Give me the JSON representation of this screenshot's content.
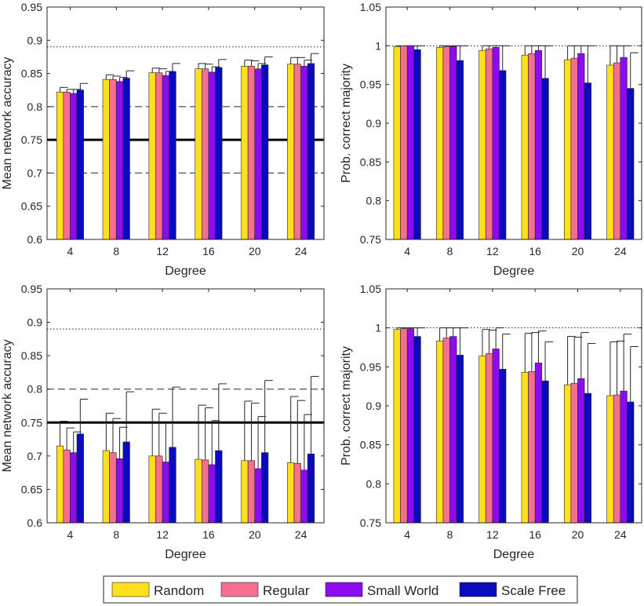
{
  "legend": [
    {
      "name": "Random",
      "color": "#FFE01A"
    },
    {
      "name": "Regular",
      "color": "#F76E8E"
    },
    {
      "name": "Small World",
      "color": "#8C0CF2"
    },
    {
      "name": "Scale Free",
      "color": "#0A0ABE"
    }
  ],
  "chart_data": [
    {
      "type": "bar",
      "panel": "top-left",
      "xlabel": "Degree",
      "ylabel": "Mean network accuracy",
      "categories": [
        "4",
        "8",
        "12",
        "16",
        "20",
        "24"
      ],
      "ylim": [
        0.6,
        0.95
      ],
      "yticks": [
        0.6,
        0.65,
        0.7,
        0.75,
        0.8,
        0.85,
        0.9,
        0.95
      ],
      "ytick_labels": [
        "0.6",
        "0.65",
        "0.7",
        "0.75",
        "0.8",
        "0.85",
        "0.9",
        "0.95"
      ],
      "reference_lines": [
        {
          "value": 0.75,
          "style": "solid-thick"
        },
        {
          "value": 0.7,
          "style": "dashed"
        },
        {
          "value": 0.8,
          "style": "dashed"
        },
        {
          "value": 0.89,
          "style": "dotted"
        }
      ],
      "series": [
        {
          "name": "Random",
          "values": [
            0.822,
            0.841,
            0.851,
            0.857,
            0.861,
            0.864
          ],
          "errors": [
            0.007,
            0.007,
            0.007,
            0.008,
            0.009,
            0.01
          ]
        },
        {
          "name": "Regular",
          "values": [
            0.822,
            0.841,
            0.851,
            0.857,
            0.861,
            0.864
          ],
          "errors": [
            0.004,
            0.005,
            0.006,
            0.007,
            0.008,
            0.01
          ]
        },
        {
          "name": "Small World",
          "values": [
            0.82,
            0.838,
            0.847,
            0.852,
            0.857,
            0.861
          ],
          "errors": [
            0.006,
            0.006,
            0.006,
            0.008,
            0.008,
            0.009
          ]
        },
        {
          "name": "Scale Free",
          "values": [
            0.825,
            0.843,
            0.853,
            0.859,
            0.863,
            0.865
          ],
          "errors": [
            0.01,
            0.011,
            0.012,
            0.012,
            0.012,
            0.015
          ]
        }
      ]
    },
    {
      "type": "bar",
      "panel": "top-right",
      "xlabel": "Degree",
      "ylabel": "Prob. correct majority",
      "categories": [
        "4",
        "8",
        "12",
        "16",
        "20",
        "24"
      ],
      "ylim": [
        0.75,
        1.05
      ],
      "yticks": [
        0.75,
        0.8,
        0.85,
        0.9,
        0.95,
        1.0,
        1.05
      ],
      "ytick_labels": [
        "0.75",
        "0.8",
        "0.85",
        "0.9",
        "0.95",
        "1",
        "1.05"
      ],
      "reference_lines": [
        {
          "value": 1.0,
          "style": "dotted"
        }
      ],
      "series": [
        {
          "name": "Random",
          "values": [
            0.999,
            0.998,
            0.994,
            0.988,
            0.982,
            0.975
          ],
          "errors": [
            0.001,
            0.002,
            0.006,
            0.012,
            0.018,
            0.025
          ]
        },
        {
          "name": "Regular",
          "values": [
            1.0,
            0.999,
            0.996,
            0.99,
            0.984,
            0.978
          ],
          "errors": [
            0.0,
            0.001,
            0.004,
            0.01,
            0.016,
            0.022
          ]
        },
        {
          "name": "Small World",
          "values": [
            1.0,
            0.999,
            0.998,
            0.994,
            0.99,
            0.985
          ],
          "errors": [
            0.0,
            0.001,
            0.002,
            0.006,
            0.01,
            0.015
          ]
        },
        {
          "name": "Scale Free",
          "values": [
            0.995,
            0.981,
            0.968,
            0.958,
            0.952,
            0.945
          ],
          "errors": [
            0.005,
            0.019,
            0.032,
            0.042,
            0.048,
            0.046
          ]
        }
      ]
    },
    {
      "type": "bar",
      "panel": "bottom-left",
      "xlabel": "Degree",
      "ylabel": "Mean network accuracy",
      "categories": [
        "4",
        "8",
        "12",
        "16",
        "20",
        "24"
      ],
      "ylim": [
        0.6,
        0.95
      ],
      "yticks": [
        0.6,
        0.65,
        0.7,
        0.75,
        0.8,
        0.85,
        0.9,
        0.95
      ],
      "ytick_labels": [
        "0.6",
        "0.65",
        "0.7",
        "0.75",
        "0.8",
        "0.85",
        "0.9",
        "0.95"
      ],
      "reference_lines": [
        {
          "value": 0.75,
          "style": "solid-thick"
        },
        {
          "value": 0.8,
          "style": "dashed"
        },
        {
          "value": 0.89,
          "style": "dotted"
        }
      ],
      "series": [
        {
          "name": "Random",
          "values": [
            0.715,
            0.708,
            0.7,
            0.695,
            0.693,
            0.69
          ],
          "errors": [
            0.037,
            0.056,
            0.07,
            0.081,
            0.089,
            0.099
          ]
        },
        {
          "name": "Regular",
          "values": [
            0.709,
            0.705,
            0.7,
            0.694,
            0.693,
            0.689
          ],
          "errors": [
            0.033,
            0.051,
            0.064,
            0.078,
            0.086,
            0.094
          ]
        },
        {
          "name": "Small World",
          "values": [
            0.705,
            0.696,
            0.691,
            0.687,
            0.681,
            0.679
          ],
          "errors": [
            0.031,
            0.047,
            0.058,
            0.066,
            0.078,
            0.083
          ]
        },
        {
          "name": "Scale Free",
          "values": [
            0.733,
            0.721,
            0.713,
            0.708,
            0.705,
            0.703
          ],
          "errors": [
            0.052,
            0.075,
            0.09,
            0.1,
            0.108,
            0.116
          ]
        }
      ]
    },
    {
      "type": "bar",
      "panel": "bottom-right",
      "xlabel": "Degree",
      "ylabel": "Prob. correct majority",
      "categories": [
        "4",
        "8",
        "12",
        "16",
        "20",
        "24"
      ],
      "ylim": [
        0.75,
        1.05
      ],
      "yticks": [
        0.75,
        0.8,
        0.85,
        0.9,
        0.95,
        1.0,
        1.05
      ],
      "ytick_labels": [
        "0.75",
        "0.8",
        "0.85",
        "0.9",
        "0.95",
        "1",
        "1.05"
      ],
      "reference_lines": [
        {
          "value": 1.0,
          "style": "dotted"
        }
      ],
      "series": [
        {
          "name": "Random",
          "values": [
            0.998,
            0.983,
            0.964,
            0.943,
            0.927,
            0.913
          ],
          "errors": [
            0.002,
            0.017,
            0.034,
            0.05,
            0.062,
            0.069
          ]
        },
        {
          "name": "Regular",
          "values": [
            0.999,
            0.987,
            0.967,
            0.944,
            0.929,
            0.914
          ],
          "errors": [
            0.001,
            0.013,
            0.03,
            0.05,
            0.059,
            0.069
          ]
        },
        {
          "name": "Small World",
          "values": [
            0.999,
            0.989,
            0.973,
            0.955,
            0.935,
            0.919
          ],
          "errors": [
            0.001,
            0.011,
            0.027,
            0.041,
            0.059,
            0.073
          ]
        },
        {
          "name": "Scale Free",
          "values": [
            0.989,
            0.965,
            0.947,
            0.932,
            0.916,
            0.905
          ],
          "errors": [
            0.011,
            0.035,
            0.045,
            0.05,
            0.064,
            0.071
          ]
        }
      ]
    }
  ]
}
